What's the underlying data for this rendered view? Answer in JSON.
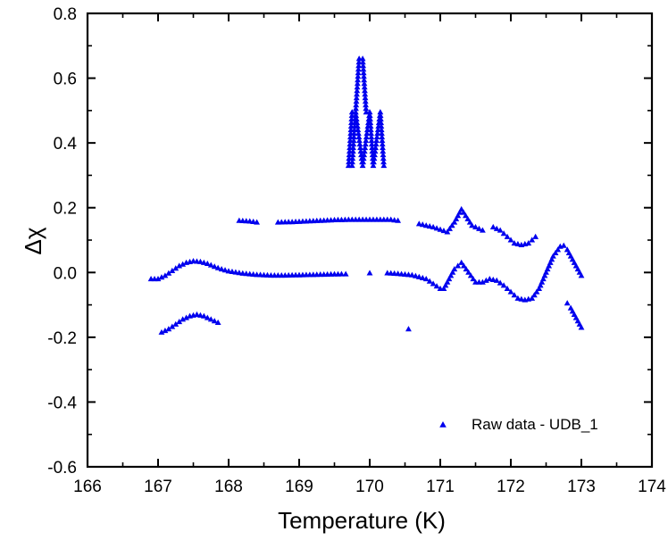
{
  "chart_data": {
    "type": "scatter",
    "xlabel": "Temperature (K)",
    "ylabel": "Δχ",
    "xlim": [
      166,
      174
    ],
    "ylim": [
      -0.6,
      0.8
    ],
    "xticks": [
      "166",
      "167",
      "168",
      "169",
      "170",
      "171",
      "172",
      "173",
      "174"
    ],
    "yticks": [
      "-0.6",
      "-0.4",
      "-0.2",
      "0.0",
      "0.2",
      "0.4",
      "0.6",
      "0.8"
    ],
    "grid": false,
    "legend_position": "bottom-right",
    "marker": "triangle",
    "color": "#0000ee",
    "series": [
      {
        "name": "Raw data - UDB_1",
        "segments": [
          {
            "x": [
              166.9,
              167.0,
              167.1,
              167.2,
              167.3,
              167.4,
              167.5,
              167.6,
              167.7,
              167.8,
              167.9,
              168.0,
              168.2,
              168.4,
              168.6,
              168.8,
              169.0,
              169.2,
              169.4,
              169.6,
              169.66
            ],
            "y": [
              -0.02,
              -0.02,
              -0.01,
              0.005,
              0.02,
              0.03,
              0.035,
              0.033,
              0.027,
              0.018,
              0.01,
              0.004,
              -0.003,
              -0.007,
              -0.009,
              -0.009,
              -0.008,
              -0.007,
              -0.006,
              -0.005,
              -0.005
            ]
          },
          {
            "x": [
              170.0
            ],
            "y": [
              -0.002
            ]
          },
          {
            "x": [
              170.25,
              170.4,
              170.6,
              170.8,
              170.9,
              171.0,
              171.05,
              171.1,
              171.2,
              171.3,
              171.4,
              171.5,
              171.6,
              171.7,
              171.8,
              171.9,
              172.0,
              172.1,
              172.2,
              172.3,
              172.4,
              172.5,
              172.6,
              172.7,
              172.75,
              172.8,
              172.9,
              173.0
            ],
            "y": [
              -0.002,
              -0.004,
              -0.008,
              -0.02,
              -0.035,
              -0.05,
              -0.05,
              -0.03,
              0.01,
              0.03,
              0.0,
              -0.03,
              -0.03,
              -0.02,
              -0.025,
              -0.04,
              -0.06,
              -0.08,
              -0.085,
              -0.08,
              -0.05,
              0.0,
              0.05,
              0.08,
              0.083,
              0.07,
              0.03,
              -0.01
            ]
          },
          {
            "x": [
              168.15,
              168.3,
              168.4
            ],
            "y": [
              0.16,
              0.158,
              0.155
            ]
          },
          {
            "x": [
              168.7,
              168.9,
              169.1,
              169.3,
              169.5,
              169.7,
              169.9,
              170.1,
              170.3,
              170.4
            ],
            "y": [
              0.155,
              0.156,
              0.158,
              0.16,
              0.162,
              0.163,
              0.163,
              0.163,
              0.163,
              0.16
            ]
          },
          {
            "x": [
              170.7,
              170.8,
              170.9,
              171.1,
              171.2,
              171.3,
              171.45,
              171.6
            ],
            "y": [
              0.15,
              0.145,
              0.14,
              0.125,
              0.155,
              0.195,
              0.145,
              0.13
            ]
          },
          {
            "x": [
              171.75,
              171.85,
              171.95,
              172.05,
              172.15,
              172.25,
              172.35
            ],
            "y": [
              0.14,
              0.13,
              0.11,
              0.09,
              0.085,
              0.09,
              0.11
            ]
          },
          {
            "x": [
              167.05,
              167.15,
              167.25,
              167.35,
              167.45,
              167.55,
              167.65,
              167.75,
              167.85
            ],
            "y": [
              -0.185,
              -0.175,
              -0.16,
              -0.145,
              -0.135,
              -0.13,
              -0.135,
              -0.145,
              -0.155
            ]
          },
          {
            "x": [
              169.75,
              169.8,
              169.85,
              169.9,
              169.95
            ],
            "y": [
              0.33,
              0.495,
              0.66,
              0.66,
              0.495
            ]
          },
          {
            "x": [
              169.7,
              169.75,
              169.8,
              169.9,
              170.0,
              170.05,
              170.15,
              170.2
            ],
            "y": [
              0.33,
              0.495,
              0.495,
              0.33,
              0.495,
              0.33,
              0.495,
              0.33
            ]
          },
          {
            "x": [
              170.55
            ],
            "y": [
              -0.175
            ]
          },
          {
            "x": [
              172.8,
              172.85,
              172.9,
              172.95,
              173.0
            ],
            "y": [
              -0.095,
              -0.11,
              -0.13,
              -0.15,
              -0.17
            ]
          }
        ]
      }
    ],
    "legend": {
      "label": "Raw data - UDB_1"
    }
  }
}
